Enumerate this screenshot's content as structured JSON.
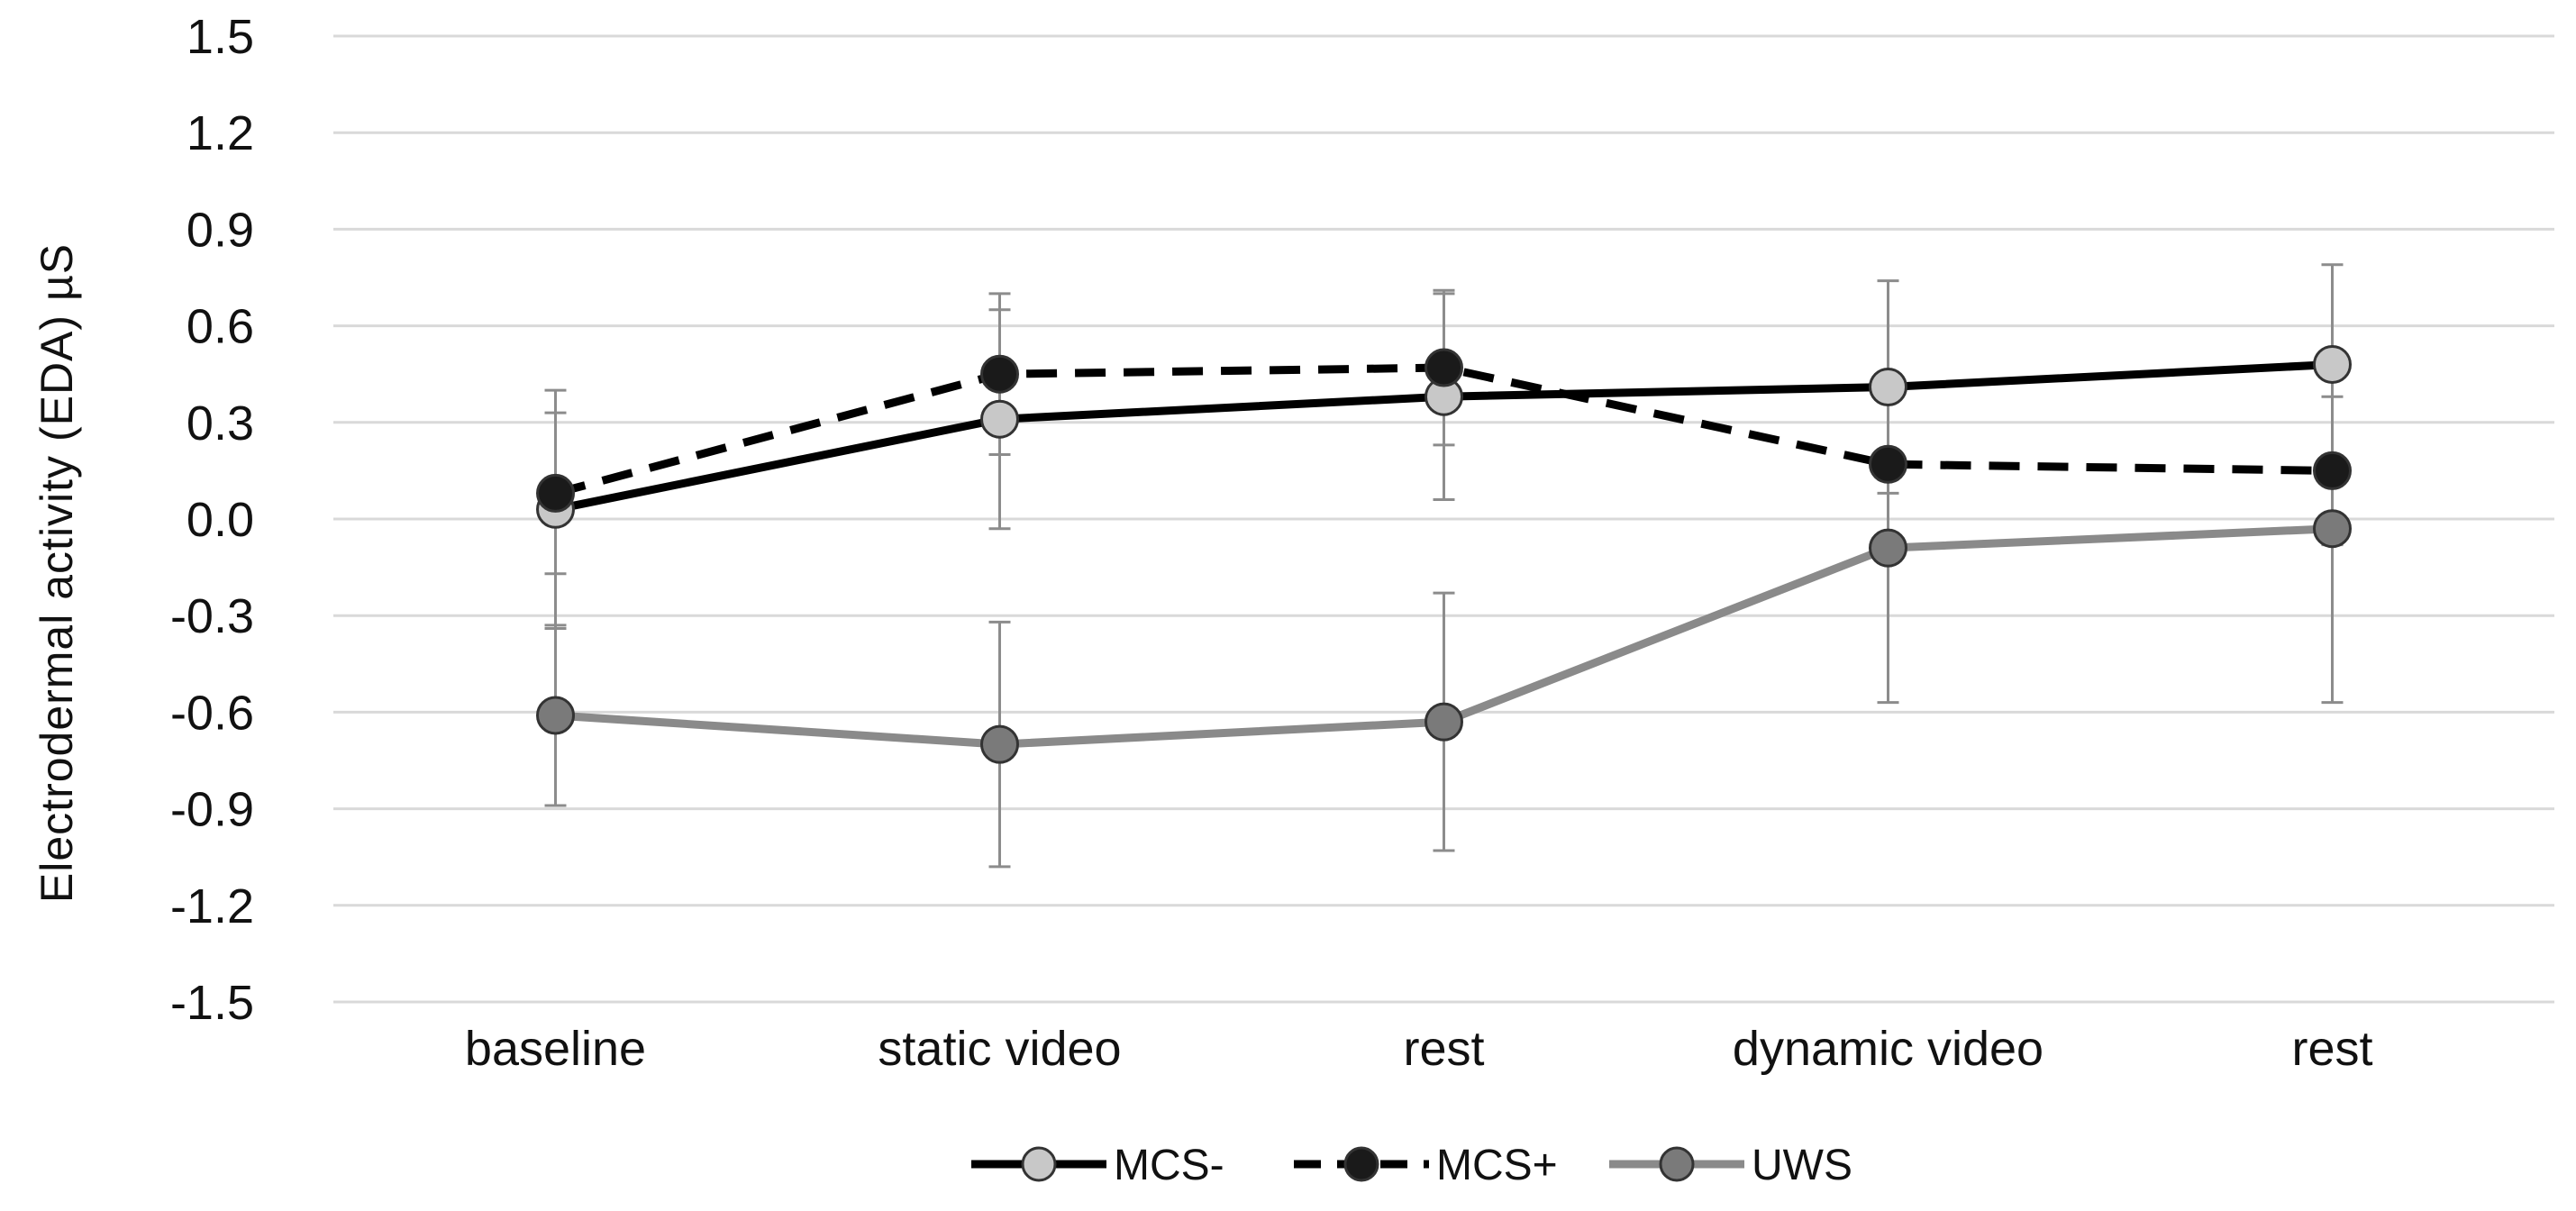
{
  "chart_data": {
    "type": "line",
    "title": "",
    "xlabel": "",
    "ylabel": "Electrodermal  activity  (EDA) µS",
    "ylim": [
      -1.5,
      1.5
    ],
    "ytick_step": 0.3,
    "ytick_labels": [
      "1.5",
      "1.2",
      "0.9",
      "0.6",
      "0.3",
      "0.0",
      "-0.3",
      "-0.6",
      "-0.9",
      "-1.2",
      "-1.5"
    ],
    "categories": [
      "baseline",
      "static video",
      "rest",
      "dynamic video",
      "rest"
    ],
    "grid": true,
    "legend_position": "bottom-center",
    "series": [
      {
        "name": "MCS-",
        "values": [
          0.03,
          0.31,
          0.38,
          0.41,
          0.48
        ],
        "error": [
          0.37,
          0.34,
          0.32,
          0.33,
          0.31
        ],
        "line_color": "#000000",
        "line_style": "solid",
        "marker_color": "#c8c8c8"
      },
      {
        "name": "MCS+",
        "values": [
          0.08,
          0.45,
          0.47,
          0.17,
          0.15
        ],
        "error": [
          0.25,
          0.25,
          0.24,
          0.24,
          0.23
        ],
        "line_color": "#000000",
        "line_style": "dashed",
        "marker_color": "#1a1a1a"
      },
      {
        "name": "UWS",
        "values": [
          -0.61,
          -0.7,
          -0.63,
          -0.09,
          -0.03
        ],
        "error": [
          0.28,
          0.38,
          0.4,
          0.48,
          0.54
        ],
        "line_color": "#8a8a8a",
        "line_style": "solid",
        "marker_color": "#7a7a7a"
      }
    ]
  }
}
